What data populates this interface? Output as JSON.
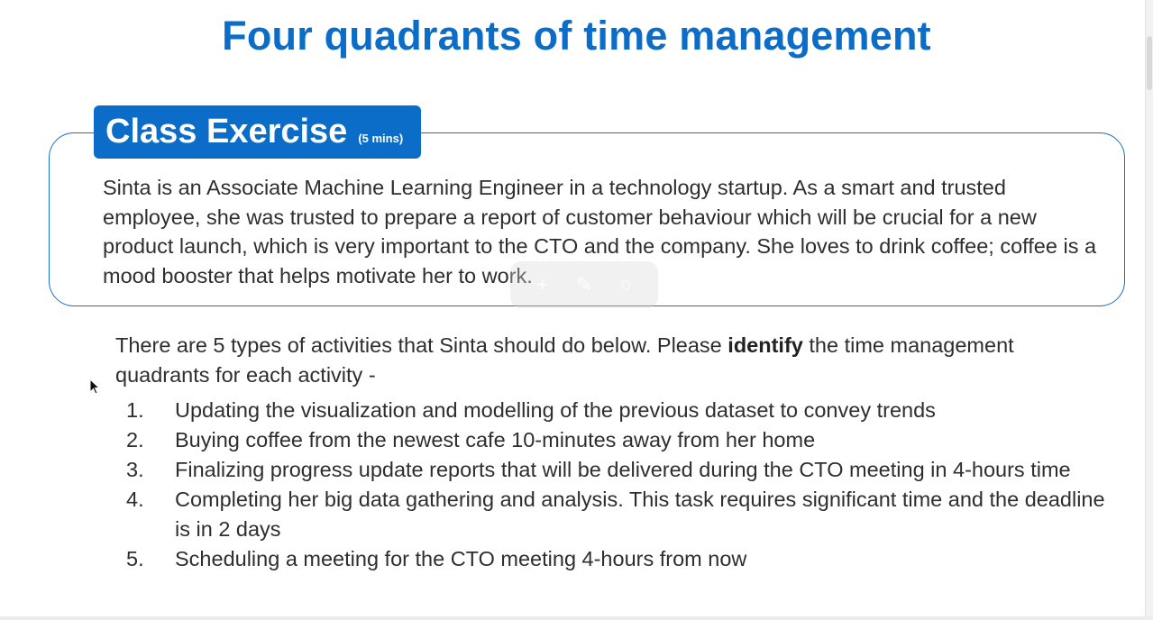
{
  "slide": {
    "title": "Four quadrants of time management"
  },
  "exercise": {
    "badge_title": "Class Exercise",
    "badge_duration": "(5 mins)",
    "scenario": "Sinta is an Associate Machine Learning Engineer in a technology startup. As a smart and trusted employee, she was trusted to prepare a report of customer behaviour which will be crucial for a new product launch, which is very important to the CTO and the company. She loves to drink coffee; coffee is a mood booster that helps motivate her to work."
  },
  "instructions": {
    "before": "There are 5 types of activities that Sinta should do below. Please ",
    "emphasis": "identify",
    "after": " the time management quadrants for each activity -"
  },
  "activities": [
    {
      "number": "1.",
      "text": "Updating the visualization and modelling of the previous dataset to convey trends"
    },
    {
      "number": "2.",
      "text": "Buying coffee from the newest cafe 10-minutes away from her home"
    },
    {
      "number": "3.",
      "text": "Finalizing progress update reports that will be delivered during the CTO meeting in 4-hours time"
    },
    {
      "number": "4.",
      "text": "Completing her big data gathering and analysis. This task requires significant time and the deadline is in 2 days"
    },
    {
      "number": "5.",
      "text": "Scheduling a meeting for the CTO meeting 4-hours from now"
    }
  ],
  "overlay_toolbar": {
    "icons": [
      "plus-icon",
      "pen-icon",
      "circle-icon"
    ],
    "glyphs": [
      "+",
      "✎",
      "○"
    ]
  },
  "colors": {
    "accent": "#0b6dc7",
    "text": "#2e2e2e"
  }
}
